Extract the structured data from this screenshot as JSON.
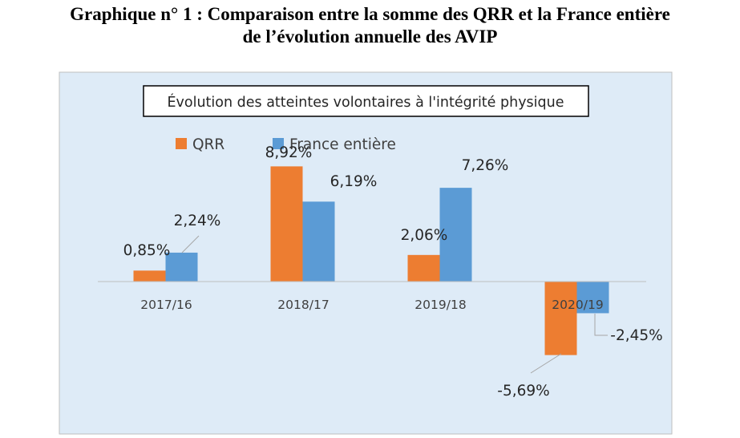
{
  "page": {
    "heading_line1": "Graphique n° 1 : Comparaison entre la somme des QRR et la France entière",
    "heading_line2": "de l’évolution annuelle des AVIP"
  },
  "chart_data": {
    "type": "bar",
    "title": "Évolution des atteintes volontaires à l'intégrité physique",
    "categories": [
      "2017/16",
      "2018/17",
      "2019/18",
      "2020/19"
    ],
    "series": [
      {
        "name": "QRR",
        "values": [
          0.85,
          8.92,
          2.06,
          -5.69
        ],
        "labels": [
          "0,85%",
          "8,92%",
          "2,06%",
          "-5,69%"
        ],
        "color": "#ED7D31"
      },
      {
        "name": "France entière",
        "values": [
          2.24,
          6.19,
          7.26,
          -2.45
        ],
        "labels": [
          "2,24%",
          "6,19%",
          "7,26%",
          "-2,45%"
        ],
        "color": "#5B9BD5"
      }
    ],
    "xlabel": "",
    "ylabel": "",
    "ylim": [
      -10,
      10
    ],
    "grid": false,
    "legend": "top-left",
    "background_color": "#DEEBF7",
    "axis_color": "#BFBFBF"
  }
}
